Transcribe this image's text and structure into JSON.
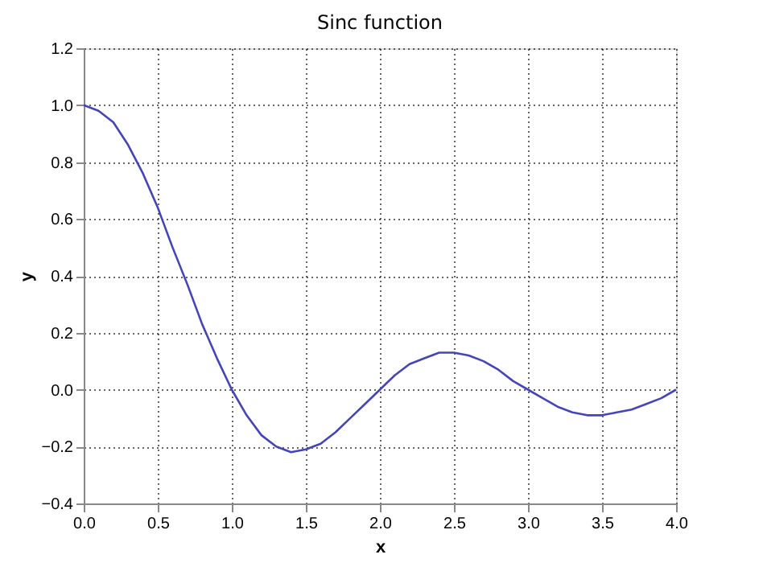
{
  "chart_data": {
    "type": "line",
    "title": "Sinc function",
    "xlabel": "x",
    "ylabel": "y",
    "x": [
      0,
      0.1,
      0.2,
      0.3,
      0.4,
      0.5,
      0.6,
      0.7,
      0.8,
      0.9,
      1.0,
      1.1,
      1.2,
      1.3,
      1.4,
      1.5,
      1.6,
      1.7,
      1.8,
      1.9,
      2.0,
      2.1,
      2.2,
      2.3,
      2.4,
      2.5,
      2.6,
      2.7,
      2.8,
      2.9,
      3.0,
      3.1,
      3.2,
      3.3,
      3.4,
      3.5,
      3.6,
      3.7,
      3.8,
      3.9,
      4.0
    ],
    "series": [
      {
        "color": "#4545bb",
        "values": [
          1.0,
          0.98,
          0.94,
          0.86,
          0.76,
          0.64,
          0.5,
          0.37,
          0.23,
          0.11,
          0.0,
          -0.09,
          -0.16,
          -0.2,
          -0.22,
          -0.21,
          -0.19,
          -0.15,
          -0.1,
          -0.05,
          0.0,
          0.05,
          0.09,
          0.11,
          0.13,
          0.13,
          0.12,
          0.1,
          0.07,
          0.03,
          0.0,
          -0.03,
          -0.06,
          -0.08,
          -0.09,
          -0.09,
          -0.08,
          -0.07,
          -0.05,
          -0.03,
          0.0
        ]
      }
    ],
    "xlim": [
      0,
      4
    ],
    "ylim": [
      -0.4,
      1.2
    ],
    "xticks": [
      {
        "value": 0,
        "label": "0.0"
      },
      {
        "value": 0.5,
        "label": "0.5"
      },
      {
        "value": 1,
        "label": "1.0"
      },
      {
        "value": 1.5,
        "label": "1.5"
      },
      {
        "value": 2,
        "label": "2.0"
      },
      {
        "value": 2.5,
        "label": "2.5"
      },
      {
        "value": 3,
        "label": "3.0"
      },
      {
        "value": 3.5,
        "label": "3.5"
      },
      {
        "value": 4,
        "label": "4.0"
      }
    ],
    "yticks": [
      {
        "value": -0.4,
        "label": "−0.4"
      },
      {
        "value": -0.2,
        "label": "−0.2"
      },
      {
        "value": 0,
        "label": "0.0"
      },
      {
        "value": 0.2,
        "label": "0.2"
      },
      {
        "value": 0.4,
        "label": "0.4"
      },
      {
        "value": 0.6,
        "label": "0.6"
      },
      {
        "value": 0.8,
        "label": "0.8"
      },
      {
        "value": 1,
        "label": "1.0"
      },
      {
        "value": 1.2,
        "label": "1.2"
      }
    ],
    "grid": true,
    "marker": "none",
    "line_style": "solid"
  }
}
